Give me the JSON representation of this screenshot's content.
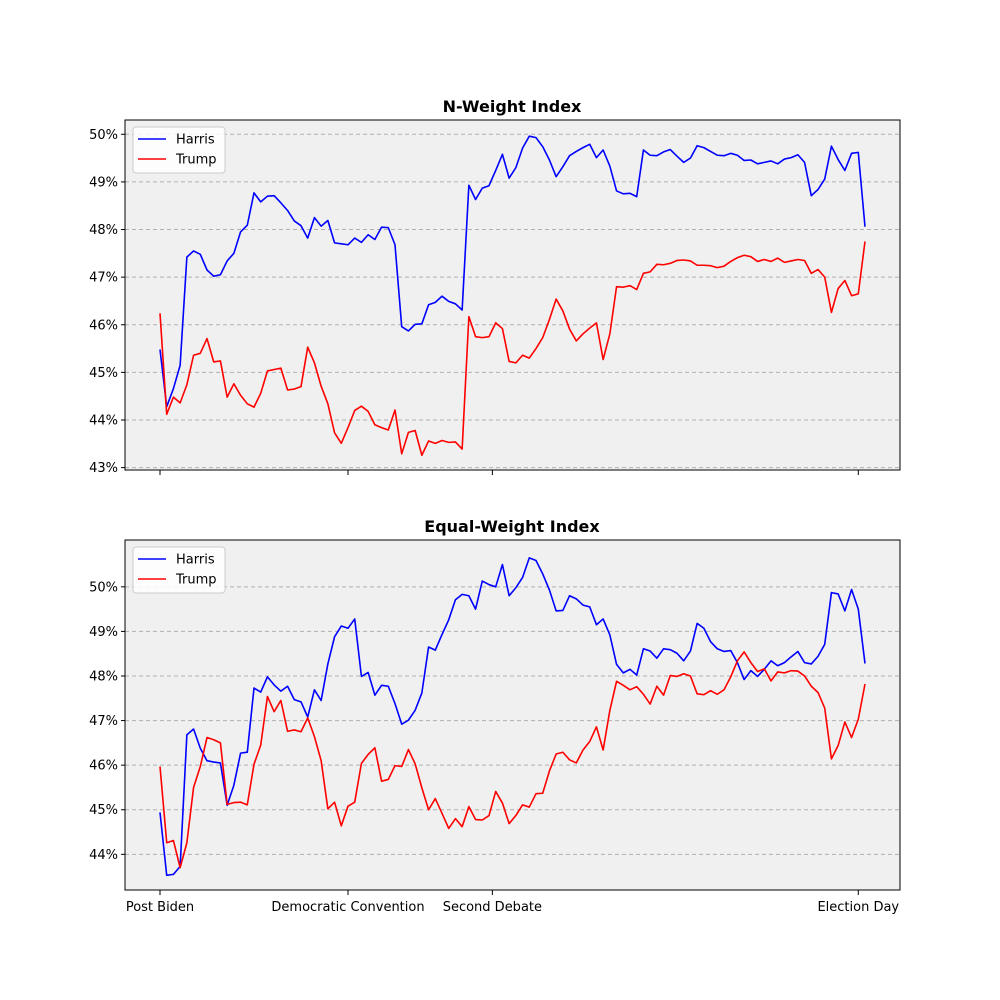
{
  "chart_data": [
    {
      "type": "line",
      "title": "N-Weight Index",
      "ylim": [
        42.95,
        50.3
      ],
      "y_ticks": [
        43,
        44,
        45,
        46,
        47,
        48,
        49,
        50
      ],
      "y_tick_format": "percent",
      "grid": "y-dashed",
      "legend": "top-left",
      "x_labels": [],
      "series": [
        {
          "name": "Harris",
          "color": "#0000ff",
          "values": [
            45.48,
            44.28,
            44.66,
            45.15,
            47.42,
            47.55,
            47.48,
            47.15,
            47.02,
            47.05,
            47.34,
            47.5,
            47.95,
            48.09,
            48.77,
            48.58,
            48.7,
            48.71,
            48.56,
            48.4,
            48.18,
            48.08,
            47.82,
            48.25,
            48.07,
            48.19,
            47.72,
            47.7,
            47.68,
            47.82,
            47.73,
            47.89,
            47.79,
            48.05,
            48.04,
            47.68,
            45.96,
            45.87,
            46.01,
            46.02,
            46.42,
            46.47,
            46.6,
            46.49,
            46.44,
            46.31,
            48.93,
            48.63,
            48.87,
            48.92,
            49.24,
            49.58,
            49.08,
            49.3,
            49.71,
            49.96,
            49.93,
            49.74,
            49.46,
            49.11,
            49.32,
            49.55,
            49.64,
            49.72,
            49.79,
            49.51,
            49.67,
            49.33,
            48.81,
            48.75,
            48.76,
            48.69,
            49.67,
            49.56,
            49.55,
            49.63,
            49.68,
            49.54,
            49.41,
            49.5,
            49.76,
            49.72,
            49.64,
            49.56,
            49.55,
            49.6,
            49.56,
            49.45,
            49.46,
            49.38,
            49.41,
            49.44,
            49.38,
            49.48,
            49.51,
            49.57,
            49.41,
            48.71,
            48.84,
            49.06,
            49.75,
            49.47,
            49.24,
            49.6,
            49.62,
            48.06
          ]
        },
        {
          "name": "Trump",
          "color": "#ff0000",
          "values": [
            46.24,
            44.12,
            44.48,
            44.36,
            44.74,
            45.36,
            45.4,
            45.71,
            45.22,
            45.24,
            44.48,
            44.76,
            44.52,
            44.34,
            44.27,
            44.56,
            45.03,
            45.06,
            45.09,
            44.63,
            44.65,
            44.7,
            45.53,
            45.2,
            44.71,
            44.34,
            43.73,
            43.51,
            43.84,
            44.2,
            44.29,
            44.18,
            43.9,
            43.84,
            43.79,
            44.21,
            43.29,
            43.74,
            43.78,
            43.26,
            43.56,
            43.51,
            43.57,
            43.53,
            43.54,
            43.39,
            46.17,
            45.75,
            45.73,
            45.75,
            46.04,
            45.92,
            45.23,
            45.2,
            45.36,
            45.3,
            45.5,
            45.73,
            46.11,
            46.54,
            46.29,
            45.91,
            45.66,
            45.81,
            45.93,
            46.04,
            45.27,
            45.81,
            46.8,
            46.79,
            46.82,
            46.74,
            47.08,
            47.11,
            47.27,
            47.26,
            47.29,
            47.35,
            47.36,
            47.34,
            47.25,
            47.25,
            47.24,
            47.2,
            47.23,
            47.33,
            47.41,
            47.46,
            47.43,
            47.33,
            47.37,
            47.33,
            47.4,
            47.31,
            47.34,
            47.37,
            47.35,
            47.08,
            47.16,
            47.0,
            46.26,
            46.76,
            46.93,
            46.61,
            46.65,
            47.75
          ]
        }
      ]
    },
    {
      "type": "line",
      "title": "Equal-Weight Index",
      "ylim": [
        43.2,
        51.05
      ],
      "y_ticks": [
        44,
        45,
        46,
        47,
        48,
        49,
        50
      ],
      "y_tick_format": "percent",
      "grid": "y-dashed",
      "legend": "top-left",
      "x_labels": [
        "Post Biden",
        "Democratic Convention",
        "Second Debate",
        "Election Day"
      ],
      "series": [
        {
          "name": "Harris",
          "color": "#0000ff",
          "values": [
            44.94,
            43.53,
            43.55,
            43.73,
            46.68,
            46.81,
            46.38,
            46.1,
            46.07,
            46.05,
            45.1,
            45.55,
            46.27,
            46.29,
            47.73,
            47.64,
            47.98,
            47.8,
            47.66,
            47.77,
            47.47,
            47.42,
            47.08,
            47.69,
            47.45,
            48.27,
            48.88,
            49.12,
            49.07,
            49.28,
            47.99,
            48.08,
            47.57,
            47.79,
            47.77,
            47.38,
            46.92,
            47.01,
            47.23,
            47.62,
            48.65,
            48.58,
            48.93,
            49.26,
            49.71,
            49.83,
            49.8,
            49.5,
            50.13,
            50.05,
            50.0,
            50.5,
            49.8,
            49.98,
            50.21,
            50.65,
            50.59,
            50.29,
            49.93,
            49.46,
            49.47,
            49.8,
            49.73,
            49.59,
            49.55,
            49.15,
            49.28,
            48.92,
            48.26,
            48.07,
            48.15,
            48.02,
            48.61,
            48.56,
            48.4,
            48.61,
            48.59,
            48.51,
            48.34,
            48.56,
            49.18,
            49.07,
            48.77,
            48.61,
            48.55,
            48.57,
            48.3,
            47.92,
            48.12,
            47.99,
            48.15,
            48.34,
            48.23,
            48.3,
            48.43,
            48.55,
            48.3,
            48.27,
            48.44,
            48.71,
            49.87,
            49.84,
            49.46,
            49.94,
            49.5,
            48.28
          ]
        },
        {
          "name": "Trump",
          "color": "#ff0000",
          "values": [
            45.97,
            44.26,
            44.31,
            43.7,
            44.26,
            45.5,
            45.97,
            46.62,
            46.57,
            46.5,
            45.12,
            45.16,
            45.17,
            45.11,
            46.02,
            46.45,
            47.54,
            47.2,
            47.45,
            46.76,
            46.79,
            46.75,
            47.06,
            46.64,
            46.1,
            45.02,
            45.17,
            44.64,
            45.08,
            45.17,
            46.04,
            46.24,
            46.39,
            45.64,
            45.68,
            45.99,
            45.97,
            46.35,
            46.03,
            45.49,
            45.0,
            45.25,
            44.92,
            44.58,
            44.8,
            44.62,
            45.07,
            44.78,
            44.77,
            44.87,
            45.41,
            45.15,
            44.69,
            44.87,
            45.11,
            45.06,
            45.36,
            45.37,
            45.87,
            46.25,
            46.29,
            46.12,
            46.05,
            46.34,
            46.53,
            46.86,
            46.34,
            47.23,
            47.88,
            47.79,
            47.69,
            47.76,
            47.59,
            47.37,
            47.77,
            47.57,
            48.01,
            47.99,
            48.05,
            48.0,
            47.6,
            47.58,
            47.67,
            47.59,
            47.69,
            47.98,
            48.34,
            48.54,
            48.3,
            48.1,
            48.16,
            47.89,
            48.09,
            48.07,
            48.12,
            48.11,
            48.0,
            47.77,
            47.63,
            47.28,
            46.14,
            46.44,
            46.97,
            46.62,
            47.03,
            47.82
          ]
        }
      ]
    }
  ]
}
